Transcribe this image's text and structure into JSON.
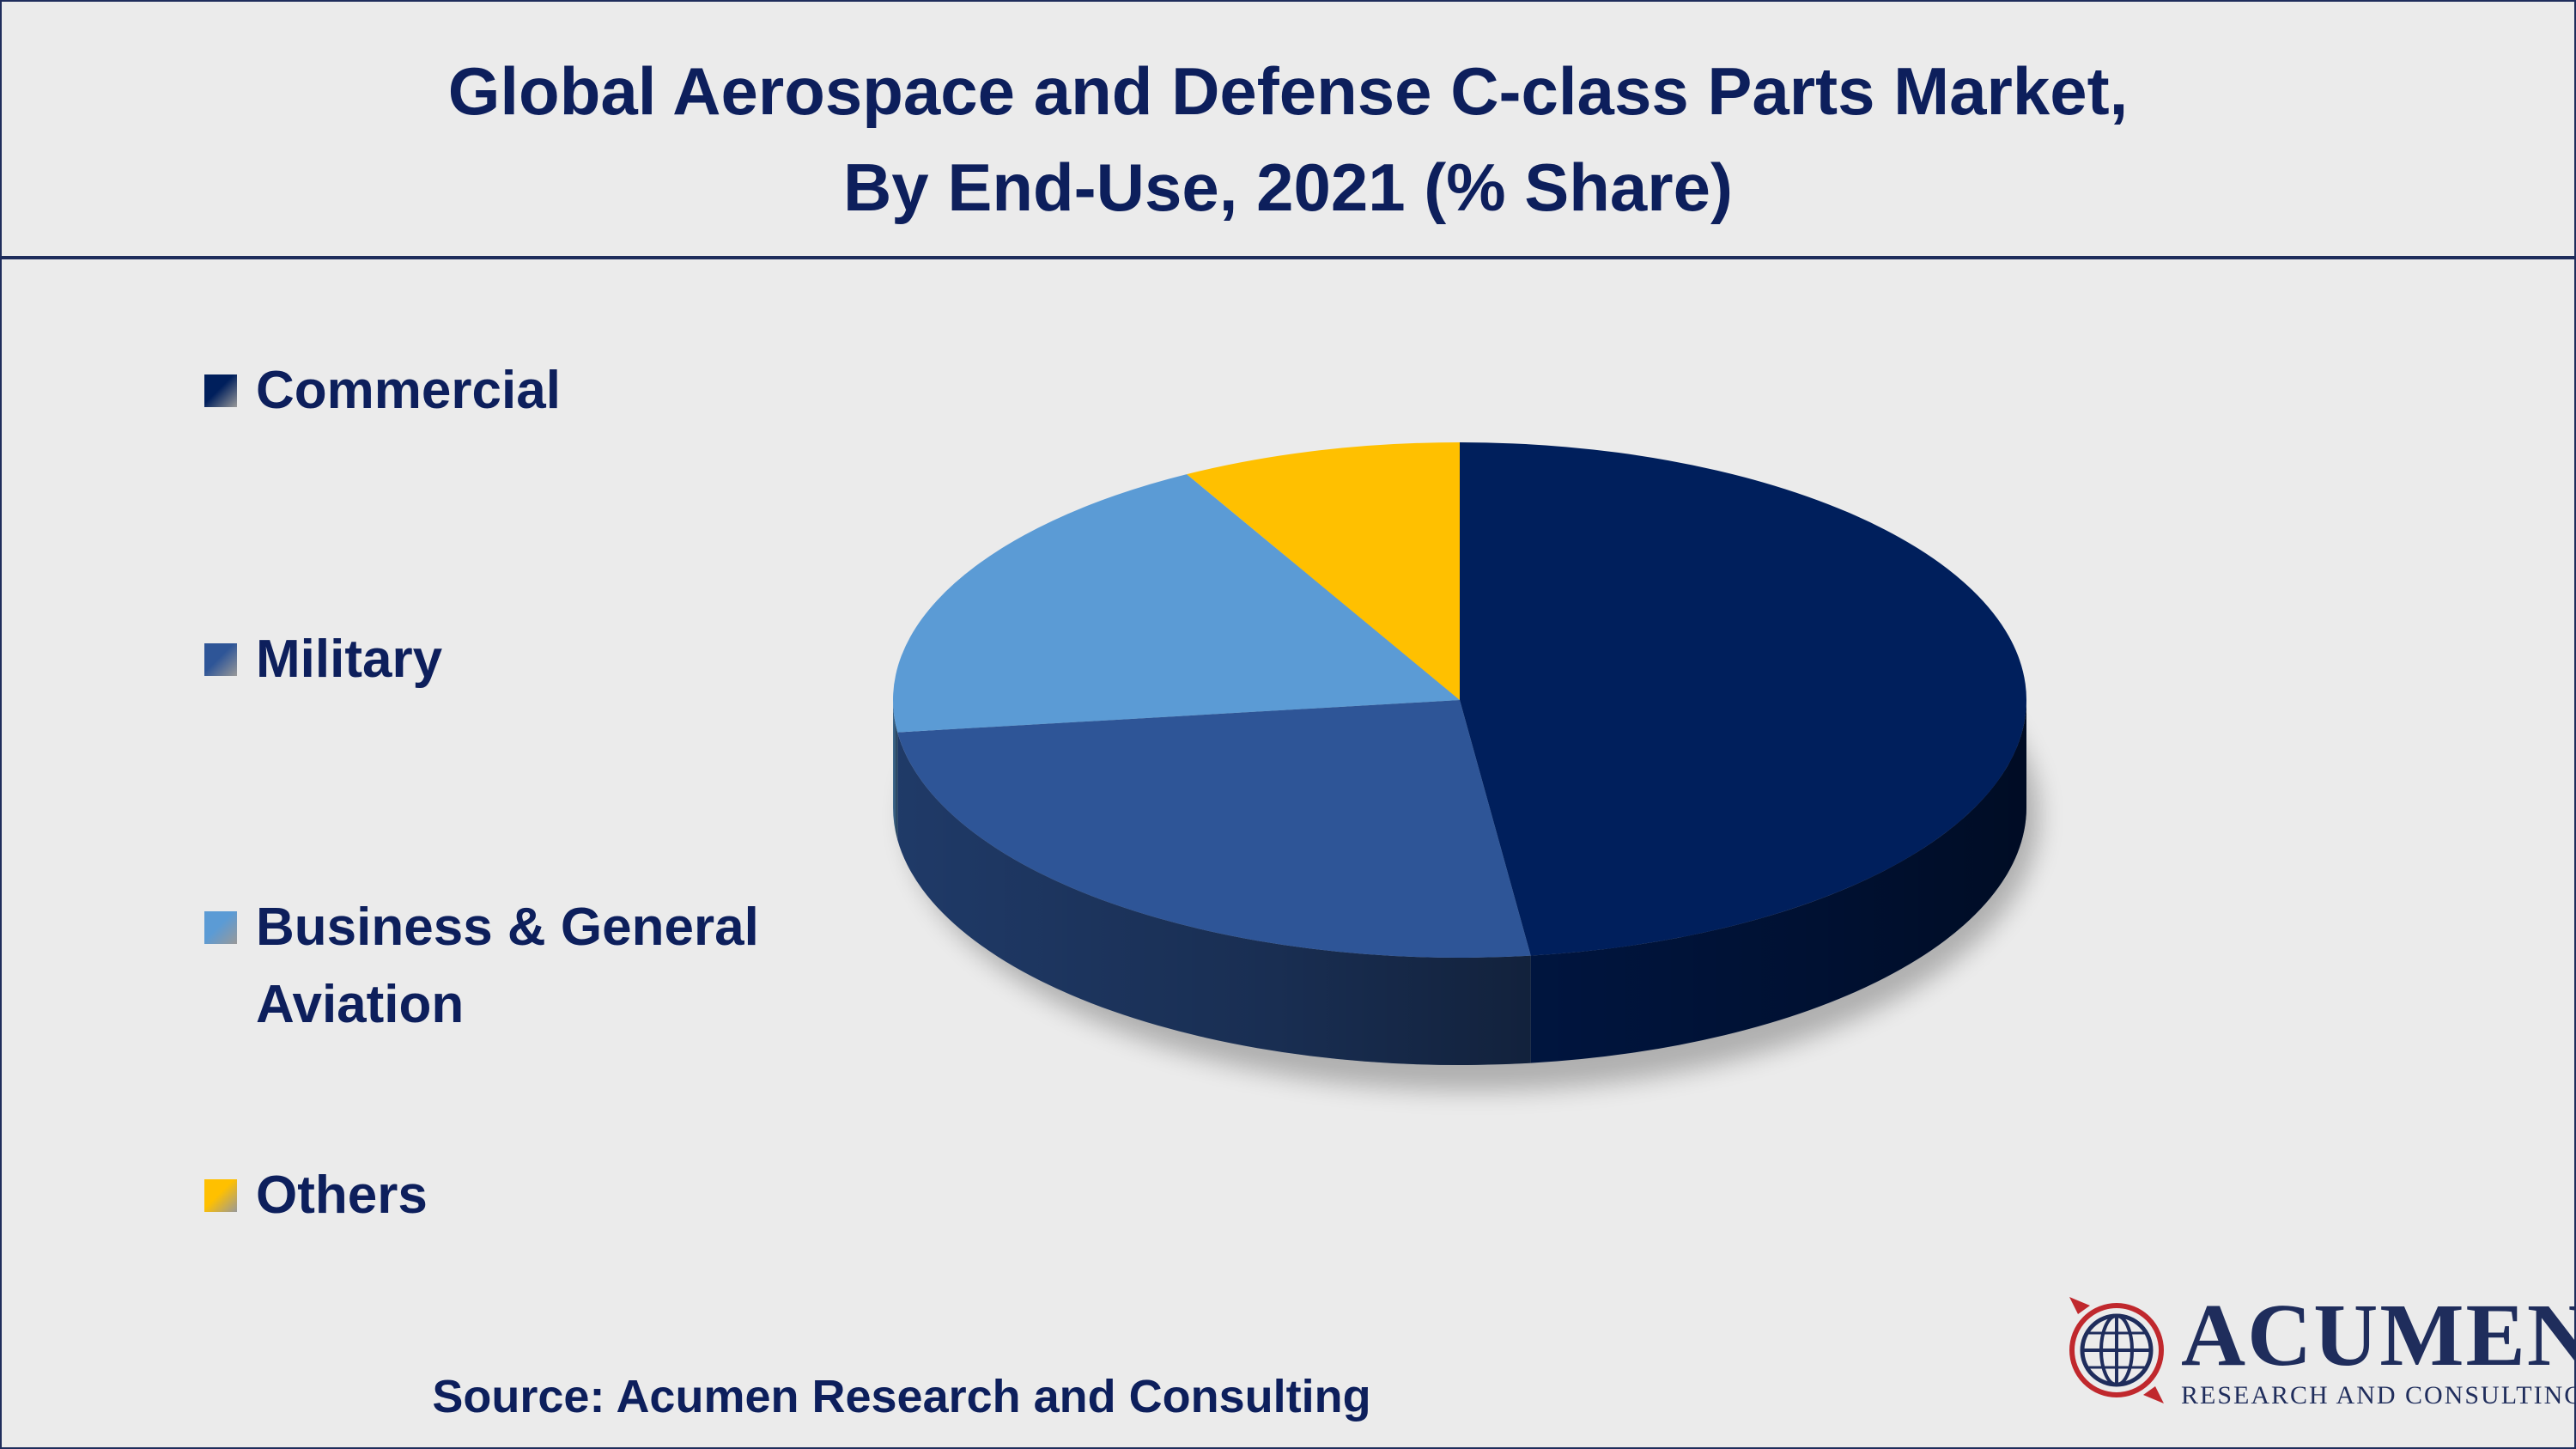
{
  "title": {
    "line1": "Global Aerospace and Defense C-class Parts Market,",
    "line2": "By End-Use, 2021 (% Share)"
  },
  "chart_data": {
    "type": "pie",
    "style": "3d",
    "legend_position": "left",
    "categories": [
      "Commercial",
      "Military",
      "Business & General Aviation",
      "Others"
    ],
    "values": [
      48,
      25,
      19,
      8
    ],
    "colors": [
      "#001f5c",
      "#2e5597",
      "#5b9bd5",
      "#ffc000"
    ]
  },
  "legend": {
    "items": [
      {
        "line1": "Commercial",
        "line2": ""
      },
      {
        "line1": "Military",
        "line2": ""
      },
      {
        "line1": "Business & General",
        "line2": "Aviation"
      },
      {
        "line1": "Others",
        "line2": ""
      }
    ]
  },
  "source": "Source: Acumen Research and Consulting",
  "logo": {
    "word": "ACUMEN",
    "sub": "RESEARCH AND CONSULTING"
  }
}
